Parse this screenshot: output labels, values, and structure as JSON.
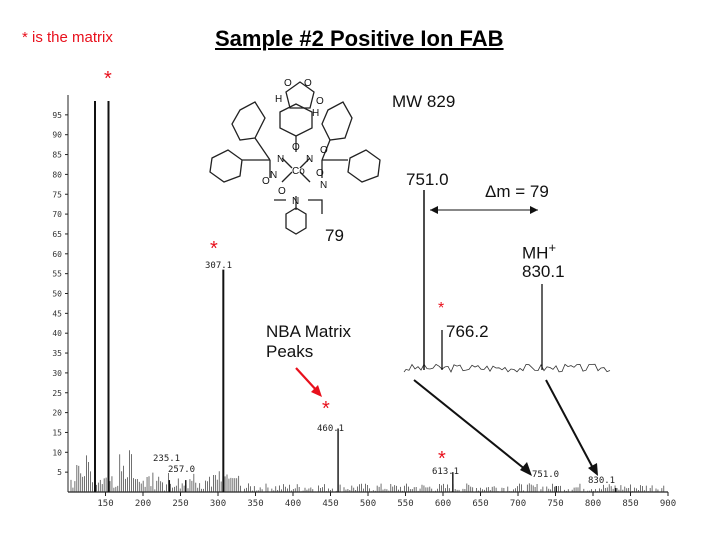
{
  "title": "Sample #2  Positive Ion FAB",
  "matrix_note": "* is the matrix",
  "structure": {
    "mw_label": "MW 829",
    "fragment_label": "79",
    "atom_labels": [
      "O",
      "O",
      "O",
      "H",
      "H",
      "O",
      "N",
      "Co",
      "N",
      "O",
      "O",
      "N",
      "O",
      "N",
      "O",
      "N"
    ]
  },
  "annotations": {
    "nba_label_line1": "NBA Matrix",
    "nba_label_line2": "Peaks",
    "inset_peak_751": "751.0",
    "inset_delta": "Δm = 79",
    "inset_mh_label": "MH",
    "inset_mh_plus": "+",
    "inset_peak_830": "830.1",
    "inset_peak_766": "766.2",
    "star": "*"
  },
  "colors": {
    "matrix_red": "#e8101c",
    "spectrum": "#111111"
  },
  "chart_data": {
    "type": "bar",
    "title": "Sample #2  Positive Ion FAB",
    "xlabel": "",
    "ylabel": "",
    "xlim": [
      100,
      900
    ],
    "ylim": [
      0,
      100
    ],
    "x_ticks": [
      "150",
      "200",
      "250",
      "300",
      "350",
      "400",
      "450",
      "500",
      "550",
      "600",
      "650",
      "700",
      "750",
      "800",
      "850",
      "900"
    ],
    "y_ticks": [
      "5",
      "10",
      "15",
      "20",
      "25",
      "30",
      "35",
      "40",
      "45",
      "50",
      "55",
      "60",
      "65",
      "70",
      "75",
      "80",
      "85",
      "90",
      "95"
    ],
    "peaks": [
      {
        "mz": 136,
        "intensity": 98.5,
        "matrix": true
      },
      {
        "mz": 154,
        "intensity": 98.5
      },
      {
        "mz": 307.1,
        "intensity": 56,
        "matrix": true,
        "label": "307.1"
      },
      {
        "mz": 460.1,
        "intensity": 16,
        "matrix": true,
        "label": "460.1"
      },
      {
        "mz": 613.1,
        "intensity": 5,
        "matrix": true,
        "label": "613.1"
      },
      {
        "mz": 235.1,
        "intensity": 3,
        "label": "235.1"
      },
      {
        "mz": 257.0,
        "intensity": 3,
        "label": "257.0"
      },
      {
        "mz": 751.0,
        "intensity": 1.5,
        "label": "751.0"
      },
      {
        "mz": 830.1,
        "intensity": 1,
        "label": "830.1"
      }
    ],
    "inset": {
      "type": "line",
      "description_peaks": [
        {
          "mz": 751.0,
          "label": "751.0"
        },
        {
          "mz": 766.2,
          "label": "766.2",
          "matrix": true
        },
        {
          "mz": 830.1,
          "label": "MH+ 830.1"
        }
      ]
    }
  }
}
